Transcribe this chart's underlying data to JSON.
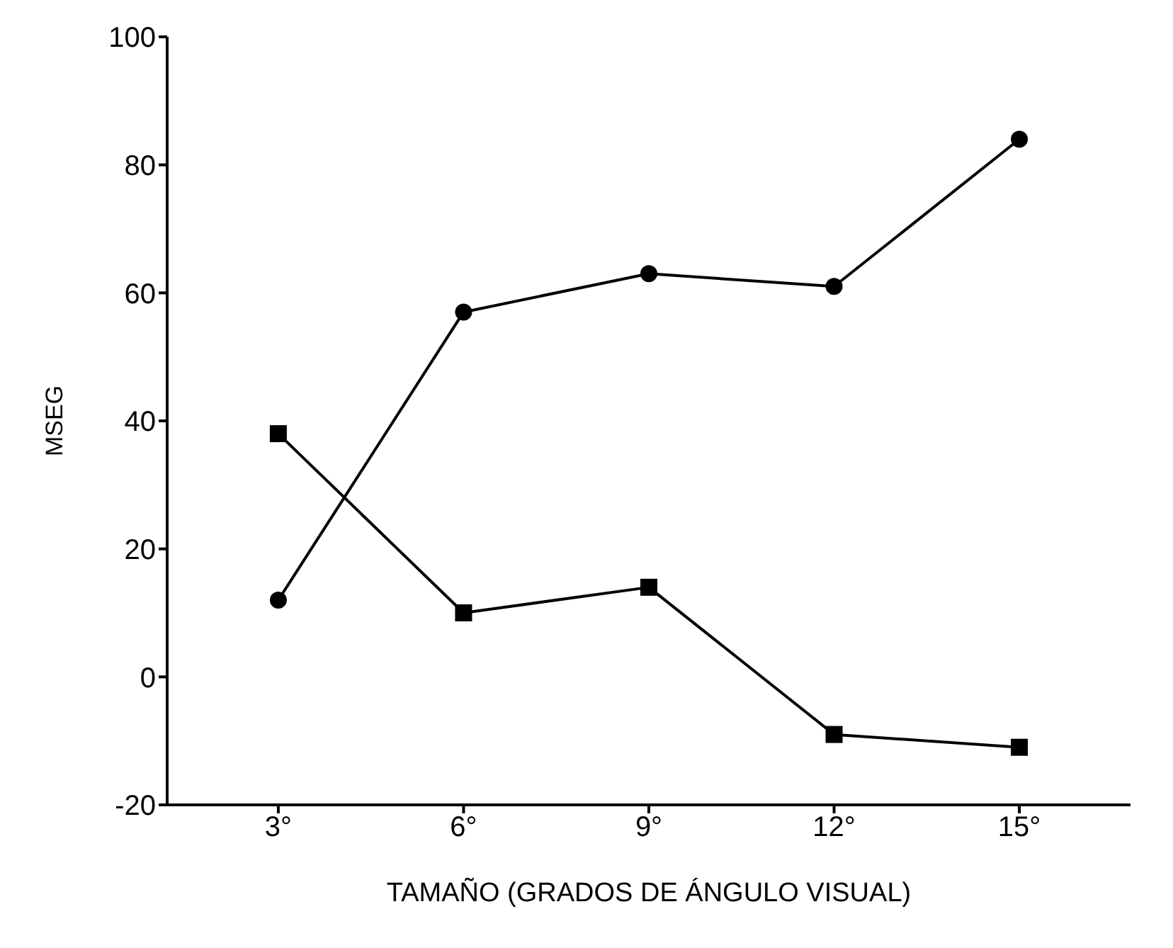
{
  "chart_data": {
    "type": "line",
    "xlabel": "TAMAÑO (GRADOS DE ÁNGULO VISUAL)",
    "ylabel": "MSEG",
    "categories": [
      "3°",
      "6°",
      "9°",
      "12°",
      "15°"
    ],
    "series": [
      {
        "color": "#000000",
        "marker": "circle",
        "values": [
          12,
          57,
          63,
          61,
          84
        ]
      },
      {
        "color": "#000000",
        "marker": "square",
        "values": [
          38,
          10,
          14,
          -9,
          -11
        ]
      }
    ],
    "ylim": [
      -20,
      100
    ],
    "yticks": [
      -20,
      0,
      20,
      40,
      60,
      80,
      100
    ],
    "grid": false,
    "line_style": "solid"
  }
}
